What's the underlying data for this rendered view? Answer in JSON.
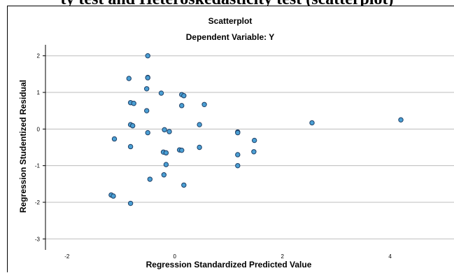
{
  "page": {
    "cut_title": "ty test and Heteroskedasticity test (scatterplot)"
  },
  "chart_data": {
    "type": "scatter",
    "title": "Scatterplot",
    "subtitle": "Dependent Variable: Y",
    "xlabel": "Regression Standardized Predicted Value",
    "ylabel": "Regression Studentized Residual",
    "xlim": [
      -2.4,
      5.2
    ],
    "ylim": [
      -3.3,
      2.3
    ],
    "xticks": [
      -2,
      0,
      2,
      4
    ],
    "yticks": [
      -3,
      -2,
      -1,
      0,
      1,
      2
    ],
    "grid": "horizontal",
    "point_color": "#4a9fd4",
    "point_edge_color": "#1e3f66",
    "points": [
      {
        "x": -0.5,
        "y": 2.0
      },
      {
        "x": -0.85,
        "y": 1.38
      },
      {
        "x": -0.5,
        "y": 1.41
      },
      {
        "x": -0.5,
        "y": 1.4
      },
      {
        "x": -0.52,
        "y": 1.1
      },
      {
        "x": -0.25,
        "y": 0.98
      },
      {
        "x": 0.13,
        "y": 0.94
      },
      {
        "x": 0.17,
        "y": 0.91
      },
      {
        "x": -0.82,
        "y": 0.72
      },
      {
        "x": -0.76,
        "y": 0.7
      },
      {
        "x": 0.55,
        "y": 0.67
      },
      {
        "x": 0.13,
        "y": 0.64
      },
      {
        "x": -0.52,
        "y": 0.5
      },
      {
        "x": -0.82,
        "y": 0.12
      },
      {
        "x": -0.78,
        "y": 0.09
      },
      {
        "x": 0.46,
        "y": 0.12
      },
      {
        "x": 2.55,
        "y": 0.17
      },
      {
        "x": 4.2,
        "y": 0.25
      },
      {
        "x": -0.19,
        "y": -0.02
      },
      {
        "x": -0.1,
        "y": -0.07
      },
      {
        "x": -0.5,
        "y": -0.1
      },
      {
        "x": 1.17,
        "y": -0.08
      },
      {
        "x": 1.17,
        "y": -0.1
      },
      {
        "x": -1.12,
        "y": -0.27
      },
      {
        "x": 1.48,
        "y": -0.31
      },
      {
        "x": -0.82,
        "y": -0.48
      },
      {
        "x": 0.46,
        "y": -0.5
      },
      {
        "x": 0.09,
        "y": -0.57
      },
      {
        "x": 0.13,
        "y": -0.58
      },
      {
        "x": -0.21,
        "y": -0.63
      },
      {
        "x": -0.16,
        "y": -0.65
      },
      {
        "x": 1.47,
        "y": -0.62
      },
      {
        "x": 1.17,
        "y": -0.7
      },
      {
        "x": -0.16,
        "y": -0.97
      },
      {
        "x": 1.17,
        "y": -1.0
      },
      {
        "x": -0.2,
        "y": -1.25
      },
      {
        "x": -0.46,
        "y": -1.37
      },
      {
        "x": 0.17,
        "y": -1.53
      },
      {
        "x": -1.18,
        "y": -1.8
      },
      {
        "x": -1.14,
        "y": -1.83
      },
      {
        "x": -0.82,
        "y": -2.03
      }
    ]
  }
}
